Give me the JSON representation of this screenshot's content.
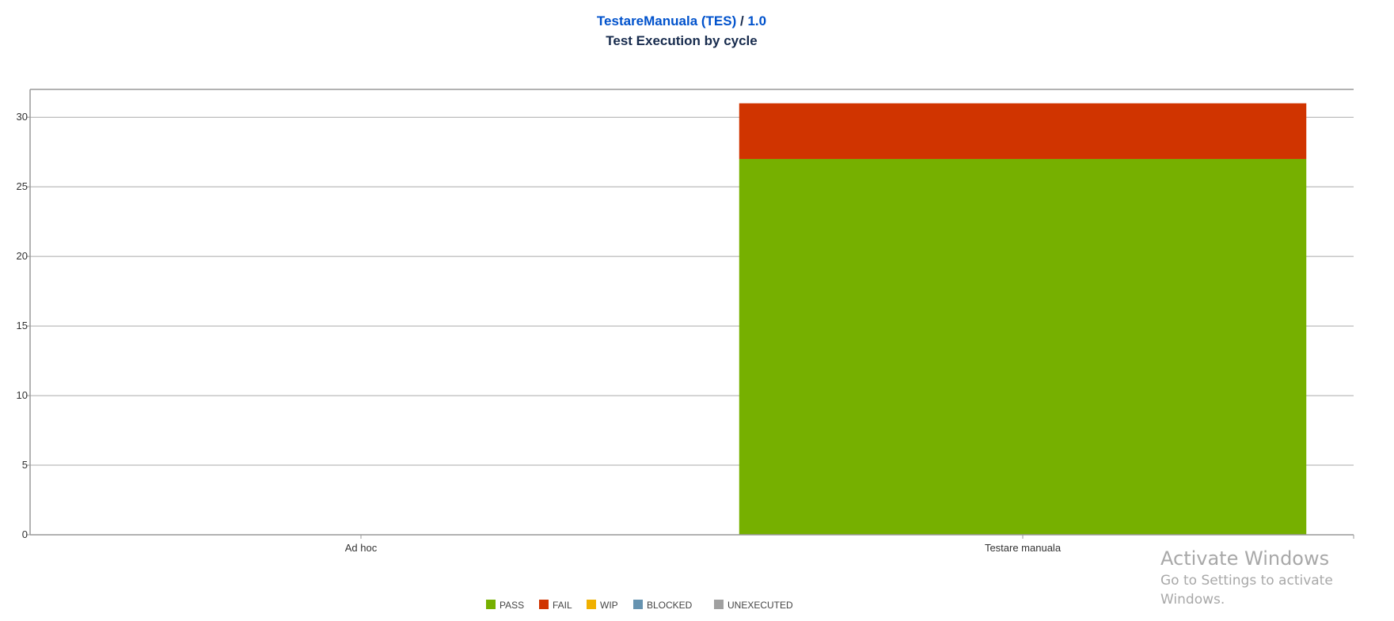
{
  "header": {
    "project_link": "TestareManuala (TES)",
    "separator": " / ",
    "version_link": "1.0",
    "subtitle": "Test Execution by cycle"
  },
  "chart_data": {
    "type": "bar",
    "stacked": true,
    "categories": [
      "Ad hoc",
      "Testare manuala"
    ],
    "series": [
      {
        "name": "PASS",
        "color": "#76b000",
        "values": [
          0,
          27
        ]
      },
      {
        "name": "FAIL",
        "color": "#d03400",
        "values": [
          0,
          4
        ]
      },
      {
        "name": "WIP",
        "color": "#f0b000",
        "values": [
          0,
          0
        ]
      },
      {
        "name": "BLOCKED",
        "color": "#6693b0",
        "values": [
          0,
          0
        ]
      },
      {
        "name": "UNEXECUTED",
        "color": "#a0a0a0",
        "values": [
          0,
          0
        ]
      }
    ],
    "ylim": [
      0,
      32
    ],
    "yticks": [
      0,
      5,
      10,
      15,
      20,
      25,
      30
    ],
    "grid": true,
    "legend": "bottom-center"
  },
  "watermark": {
    "title": "Activate Windows",
    "subtitle": "Go to Settings to activate Windows."
  }
}
